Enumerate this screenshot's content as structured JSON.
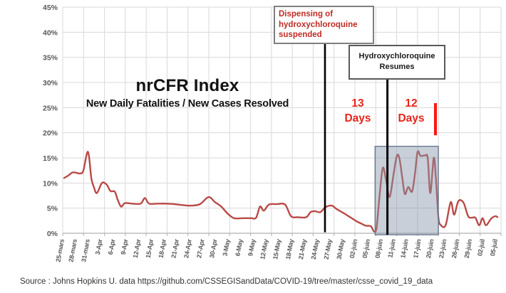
{
  "chart_data": {
    "type": "line",
    "title": "nrCFR Index",
    "subtitle": "New Daily Fatalities / New Cases Resolved",
    "xlabel": "",
    "ylabel": "",
    "ylim": [
      0,
      45
    ],
    "y_tick_step_pct": 5,
    "y_tick_labels": [
      "0%",
      "5%",
      "10%",
      "15%",
      "20%",
      "25%",
      "30%",
      "35%",
      "40%",
      "45%"
    ],
    "x_tick_labels": [
      "25-mars",
      "28-mars",
      "31-mars",
      "3-Apr",
      "6-Apr",
      "9-Apr",
      "12-Apr",
      "15-Apr",
      "18-Apr",
      "21-Apr",
      "24-Apr",
      "27-Apr",
      "30-Apr",
      "3-May",
      "6-May",
      "9-May",
      "12-May",
      "15-May",
      "18-May",
      "21-May",
      "24-May",
      "27-May",
      "30-May",
      "02-juin",
      "05-juin",
      "08-juin",
      "11-juin",
      "14-juin",
      "17-juin",
      "20-juin",
      "23-juin",
      "26-juin",
      "29-juin",
      "02-juil",
      "05-juil"
    ],
    "x_label_interval_days": 3,
    "x_span_days": 102,
    "grid": true,
    "legend": "none",
    "series": [
      {
        "name": "nrCFR (New Daily Fatalities / New Cases Resolved)",
        "color": "#b94a48",
        "points_day_pct": [
          [
            0,
            11.0
          ],
          [
            1,
            11.5
          ],
          [
            2,
            12.1
          ],
          [
            3,
            12.0
          ],
          [
            3.7,
            11.9
          ],
          [
            4.5,
            12.4
          ],
          [
            5.6,
            16.2
          ],
          [
            6.4,
            11.0
          ],
          [
            7,
            9.2
          ],
          [
            7.7,
            8.0
          ],
          [
            8.9,
            10.0
          ],
          [
            10,
            9.7
          ],
          [
            10.9,
            8.4
          ],
          [
            11.9,
            8.3
          ],
          [
            12.6,
            6.7
          ],
          [
            13.4,
            5.3
          ],
          [
            14.3,
            6.0
          ],
          [
            16,
            5.9
          ],
          [
            18,
            5.9
          ],
          [
            19,
            7.0
          ],
          [
            20,
            5.9
          ],
          [
            22,
            5.9
          ],
          [
            24,
            5.9
          ],
          [
            26,
            5.8
          ],
          [
            28,
            5.6
          ],
          [
            30,
            5.5
          ],
          [
            32,
            5.8
          ],
          [
            34,
            7.2
          ],
          [
            35.5,
            6.2
          ],
          [
            37,
            5.3
          ],
          [
            38.5,
            3.9
          ],
          [
            40,
            3.0
          ],
          [
            42,
            3.0
          ],
          [
            44,
            3.0
          ],
          [
            45.2,
            3.1
          ],
          [
            46.1,
            5.3
          ],
          [
            47,
            4.5
          ],
          [
            48.2,
            5.7
          ],
          [
            50,
            5.8
          ],
          [
            52,
            5.7
          ],
          [
            53.4,
            3.4
          ],
          [
            55,
            3.2
          ],
          [
            57,
            3.2
          ],
          [
            58,
            4.2
          ],
          [
            59,
            4.4
          ],
          [
            60.3,
            4.2
          ],
          [
            61.5,
            5.2
          ],
          [
            63,
            5.5
          ],
          [
            64,
            4.9
          ],
          [
            65,
            4.4
          ],
          [
            66,
            3.9
          ],
          [
            67.5,
            3.1
          ],
          [
            69,
            2.3
          ],
          [
            70,
            1.9
          ],
          [
            71,
            1.5
          ],
          [
            72.2,
            1.4
          ],
          [
            72.9,
            0.4
          ],
          [
            73.5,
            0.8
          ],
          [
            74.2,
            7.0
          ],
          [
            75,
            13.0
          ],
          [
            75.8,
            10.5
          ],
          [
            76.6,
            7.2
          ],
          [
            77.5,
            11.5
          ],
          [
            78.3,
            15.3
          ],
          [
            78.9,
            15.0
          ],
          [
            79.6,
            11.0
          ],
          [
            80.2,
            7.8
          ],
          [
            81,
            9.2
          ],
          [
            81.9,
            8.3
          ],
          [
            82.6,
            12.0
          ],
          [
            83.2,
            16.2
          ],
          [
            83.9,
            15.4
          ],
          [
            85,
            15.5
          ],
          [
            85.6,
            14.9
          ],
          [
            86.2,
            8.0
          ],
          [
            87,
            15.0
          ],
          [
            87.5,
            11.0
          ],
          [
            88.1,
            3.2
          ],
          [
            88.7,
            1.6
          ],
          [
            89.8,
            1.6
          ],
          [
            91,
            6.2
          ],
          [
            91.8,
            3.7
          ],
          [
            92.8,
            6.4
          ],
          [
            94,
            6.1
          ],
          [
            95.1,
            3.4
          ],
          [
            96,
            3.1
          ],
          [
            96.8,
            3.1
          ],
          [
            97.7,
            1.6
          ],
          [
            98.5,
            3.0
          ],
          [
            99.3,
            1.6
          ],
          [
            100.5,
            2.9
          ],
          [
            101.5,
            3.4
          ],
          [
            102,
            3.2
          ]
        ]
      }
    ],
    "markers": {
      "vline_suspended": {
        "day": 61.4,
        "pct_top": 38.2,
        "pct_bottom": 0.2,
        "color": "#000000",
        "width": 2.6
      },
      "vline_resumes": {
        "day": 76.1,
        "pct_top": 31.0,
        "pct_bottom": -0.3,
        "color": "#000000",
        "width": 3
      },
      "shaded_region": {
        "day_start": 73.2,
        "day_end": 88.1,
        "pct_top": 17.3,
        "pct_bottom": -0.3,
        "fill": "#8494a8",
        "opacity": 0.45,
        "border": "#6b7b91"
      },
      "red_tick": {
        "day": 87.4,
        "pct_top": 25.9,
        "pct_bottom": 19.5,
        "color": "#ff1515",
        "width": 4
      }
    },
    "annotations": {
      "suspended_label": "Dispensing of hydroxychloroquine suspended",
      "resumes_label": "Hydroxychloroquine Resumes",
      "gap_left": {
        "value": "13",
        "unit": "Days"
      },
      "gap_right": {
        "value": "12",
        "unit": "Days"
      }
    },
    "colors": {
      "grid": "#d9d9d9",
      "axis": "#b0b0b0",
      "tick_text": "#595959"
    }
  },
  "source": {
    "line": "Source : Johns Hopkins U. data https://github.com/CSSEGISandData/COVID-19/tree/master/csse_covid_19_data"
  }
}
